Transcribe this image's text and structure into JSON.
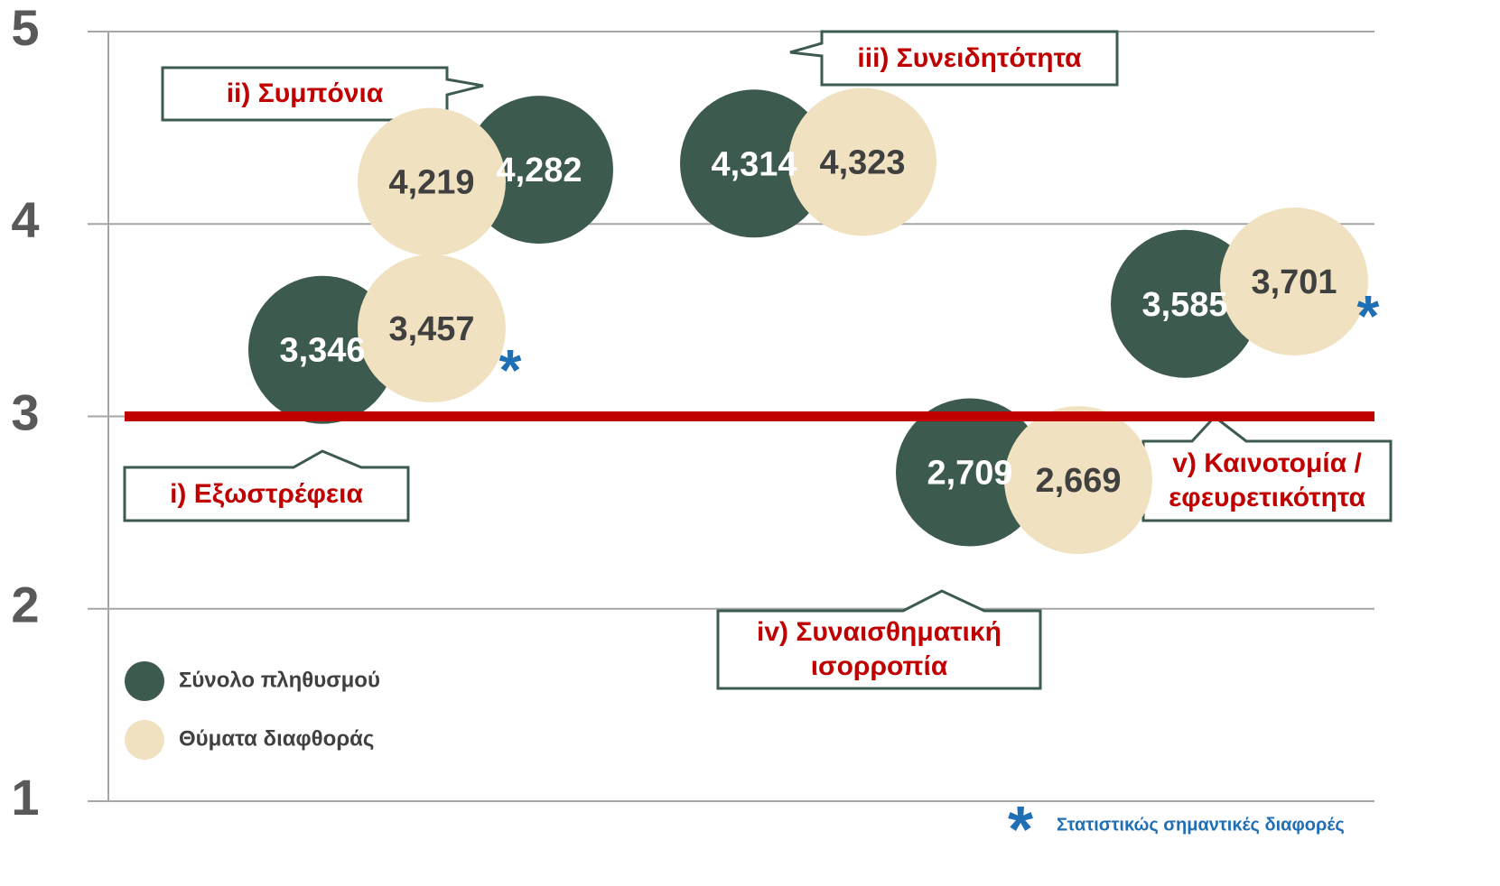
{
  "chart_data": {
    "type": "bubble",
    "categories": [
      "i)  Εξωστρέφεια",
      "ii) Συμπόνια",
      "iii) Συνειδητότητα",
      "iv) Συναισθηματική ισορροπία",
      "v) Καινοτομία / εφευρετικότητα"
    ],
    "series": [
      {
        "name": "Σύνολο πληθυσμού",
        "color": "#3d5a4f",
        "values": [
          3.346,
          4.282,
          4.314,
          2.709,
          3.585
        ],
        "value_labels": [
          "3,346",
          "4,282",
          "4,314",
          "2,709",
          "3,585"
        ]
      },
      {
        "name": "Θύματα διαφθοράς",
        "color": "#f0e2c0",
        "values": [
          3.457,
          4.219,
          4.323,
          2.669,
          3.701
        ],
        "value_labels": [
          "3,457",
          "4,219",
          "4,323",
          "2,669",
          "3,701"
        ]
      }
    ],
    "ylim": [
      1,
      5
    ],
    "yticks": [
      1,
      2,
      3,
      4,
      5
    ],
    "grid": true,
    "reference_line": 3,
    "reference_color": "#c00000",
    "significant": [
      true,
      false,
      false,
      false,
      true
    ],
    "significance_marker": "*",
    "footnote": "Στατιστικώς σημαντικές διαφορές",
    "legend": "lower left"
  }
}
